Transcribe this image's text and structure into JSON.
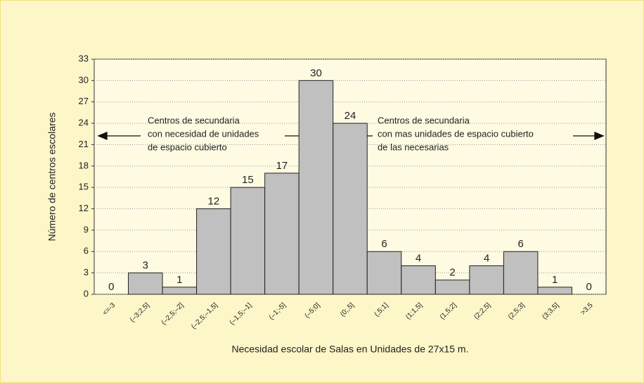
{
  "chart_data": {
    "type": "bar",
    "categories": [
      "<=-3",
      "(–3;2,5]",
      "(–2,5;–2]",
      "(–2,5;–1,5]",
      "(–1,5;–1]",
      "(–1;-5]",
      "(–5;0]",
      "(0;,5]",
      "(,5;1]",
      "(1;1,5]",
      "(1,5;2]",
      "(2;2,5]",
      "(2,5;3]",
      "(3;3,5]",
      ">3,5"
    ],
    "values": [
      0,
      3,
      1,
      12,
      15,
      17,
      30,
      24,
      6,
      4,
      2,
      4,
      6,
      1,
      0
    ],
    "color": "#c0c0c0",
    "ylim": [
      0,
      33
    ],
    "yticks": [
      0,
      3,
      6,
      9,
      12,
      15,
      18,
      21,
      24,
      27,
      30,
      33
    ],
    "grid": true,
    "y_label": "Número de centros escolares",
    "x_label": "Necesidad escolar de Salas en Unidades de 27x15 m.",
    "annotations": [
      [
        "Centros de secundaria",
        "con necesidad de unidades",
        "de espacio cubierto"
      ],
      [
        "Centros de secundaria",
        "con mas unidades de espacio cubierto",
        "de las necesarias"
      ]
    ]
  }
}
